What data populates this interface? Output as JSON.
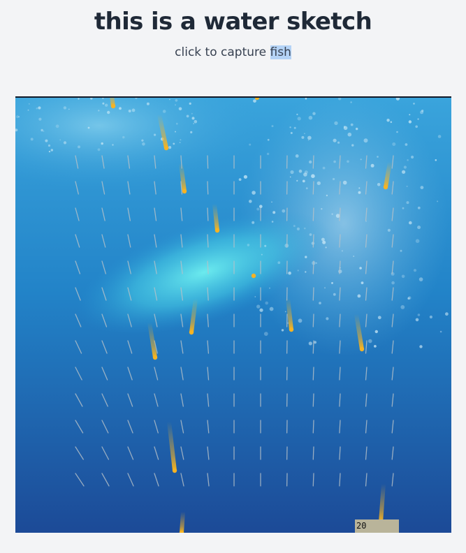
{
  "page": {
    "title": "this is a water sketch",
    "subtitle_prefix": "click to capture ",
    "subtitle_selected": "fish"
  },
  "sketch": {
    "score": "20",
    "colors": {
      "page_background": "#f3f4f6",
      "water_top": "#2f9bd6",
      "water_bottom": "#1d4c99",
      "light_beam": "#5ee3ea",
      "fish": "#f5b324",
      "flow_lines": "#b8c2c8",
      "score_box": "#b9b49a"
    }
  }
}
